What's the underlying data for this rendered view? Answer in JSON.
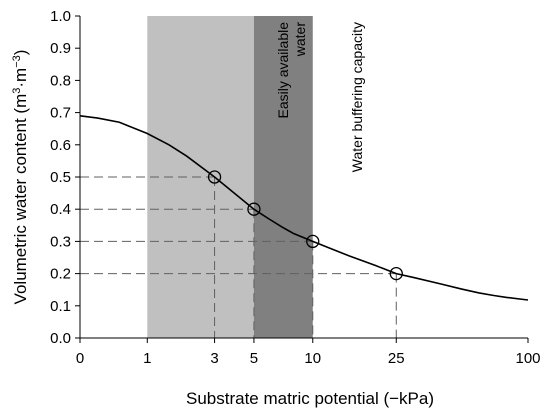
{
  "chart_data": {
    "type": "line",
    "title": "",
    "xlabel": "Substrate matric potential (−kPa)",
    "ylabel_main": "Volumetric water content (m",
    "ylabel_sup1": "3",
    "ylabel_mid": "·m",
    "ylabel_sup2": "−3",
    "ylabel_end": ")",
    "x_tick_values": [
      0,
      1,
      3,
      5,
      10,
      25,
      100
    ],
    "x_tick_labels": [
      "0",
      "1",
      "3",
      "5",
      "10",
      "25",
      "100"
    ],
    "y_ticks": [
      "0.0",
      "0.1",
      "0.2",
      "0.3",
      "0.4",
      "0.5",
      "0.6",
      "0.7",
      "0.8",
      "0.9",
      "1.0"
    ],
    "ylim": [
      0,
      1
    ],
    "x_scale": "log10(x+1)",
    "grid": false,
    "bands": [
      {
        "name": "easily-available-water",
        "from": 1,
        "to": 5,
        "label_line1": "Easily available",
        "label_line2": "water",
        "color": "#c0c0c0"
      },
      {
        "name": "water-buffering-capacity",
        "from": 5,
        "to": 10,
        "label_line1": "Water buffering capacity",
        "label_line2": "",
        "color": "#808080"
      }
    ],
    "curve": {
      "x": [
        0,
        0.2,
        0.5,
        1,
        1.5,
        2,
        3,
        4,
        5,
        6,
        7,
        8,
        10,
        12,
        15,
        20,
        25,
        30,
        40,
        50,
        60,
        70,
        80,
        100
      ],
      "y": [
        0.69,
        0.683,
        0.67,
        0.635,
        0.6,
        0.565,
        0.5,
        0.445,
        0.4,
        0.37,
        0.345,
        0.325,
        0.3,
        0.28,
        0.255,
        0.225,
        0.2,
        0.188,
        0.168,
        0.152,
        0.14,
        0.132,
        0.126,
        0.118
      ]
    },
    "points": [
      {
        "x": 3,
        "y": 0.5
      },
      {
        "x": 5,
        "y": 0.4
      },
      {
        "x": 10,
        "y": 0.3
      },
      {
        "x": 25,
        "y": 0.2
      }
    ],
    "line_color": "#000000",
    "guide_color": "#606060"
  }
}
